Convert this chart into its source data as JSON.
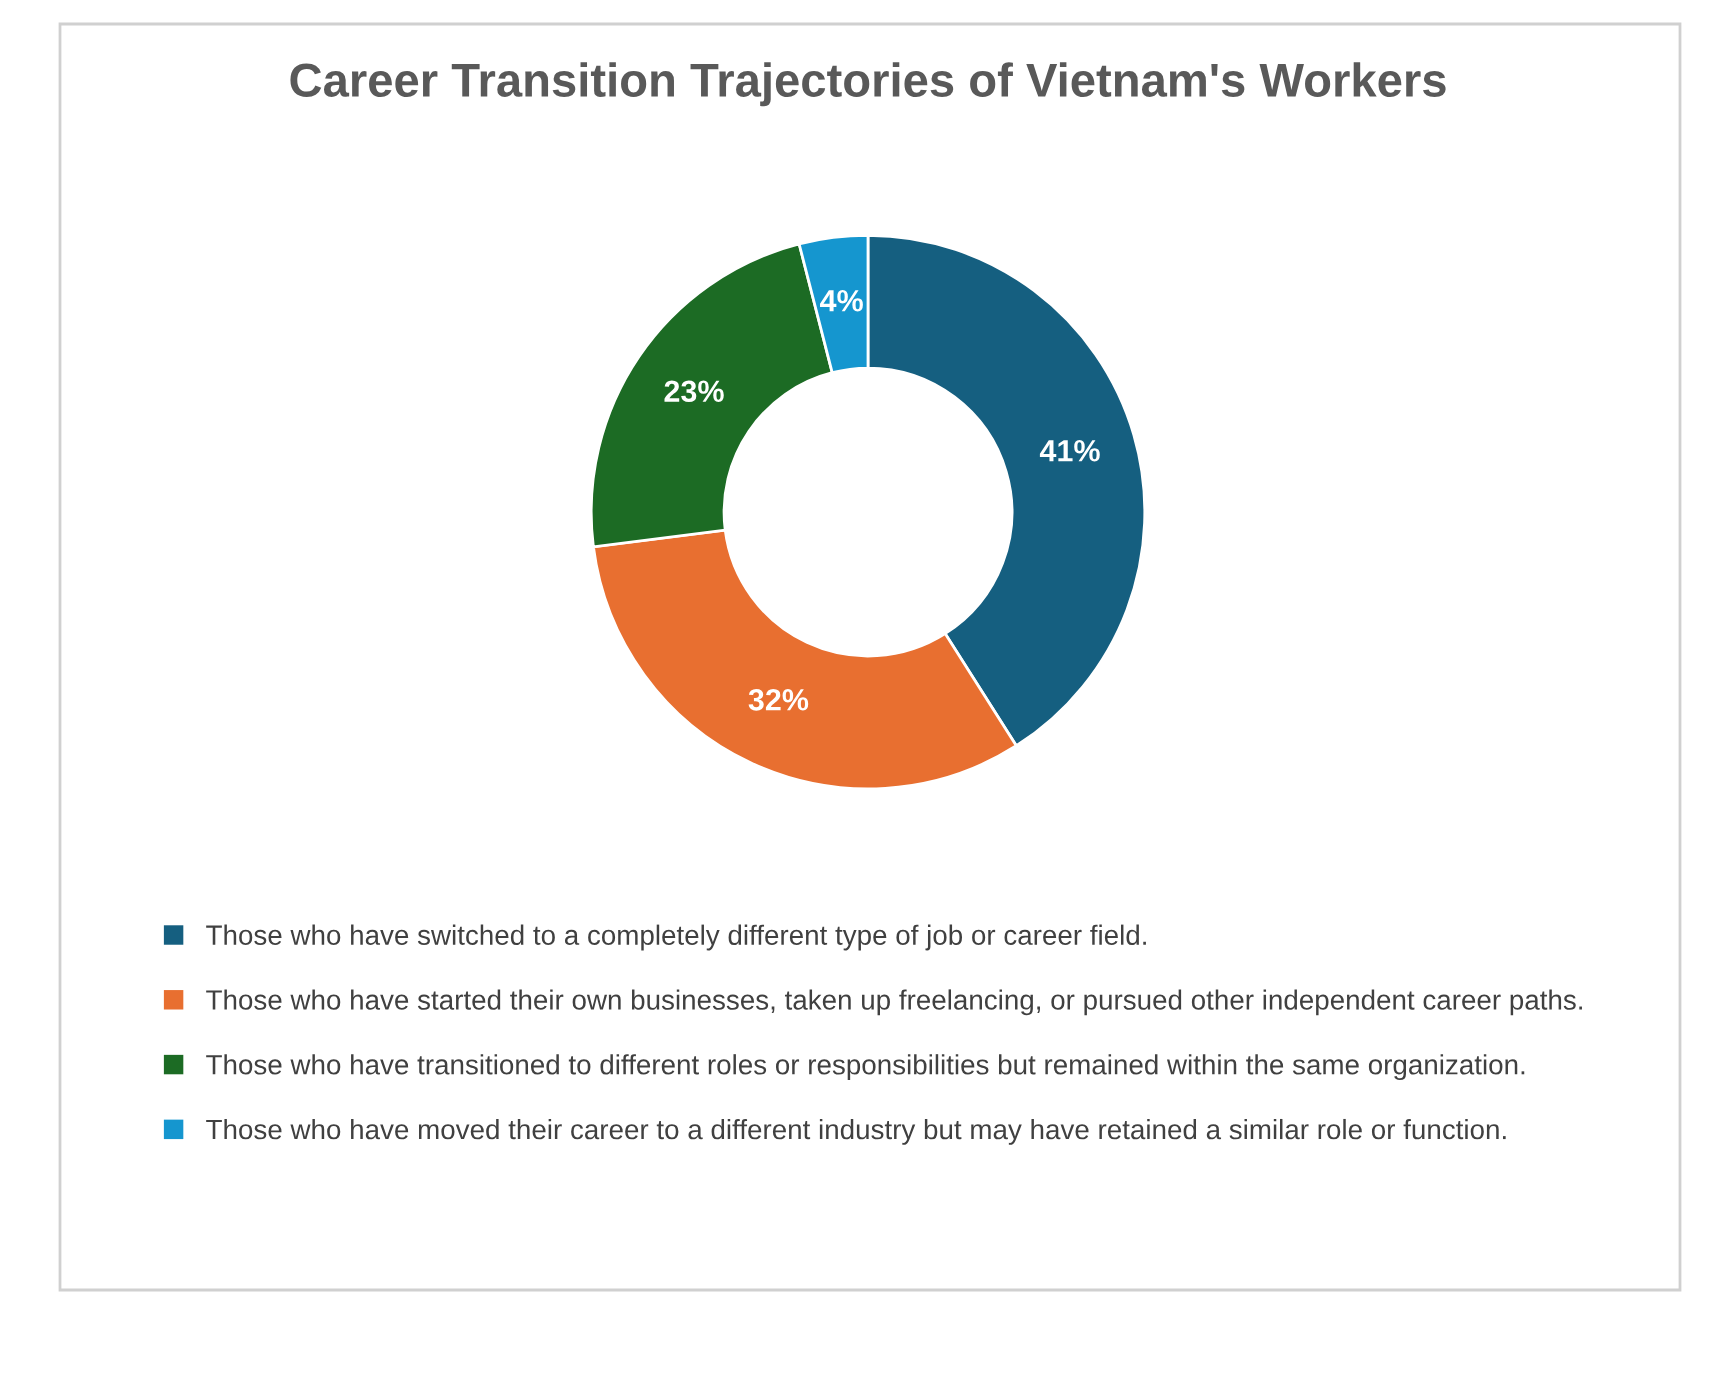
{
  "chart_data": {
    "type": "donut",
    "title": "Career Transition Trajectories of Vietnam's Workers",
    "categories": [
      "Those who have switched to a completely different type of job or career field.",
      "Those who have started their own businesses, taken up freelancing, or pursued other independent career paths.",
      "Those who have transitioned to different roles or responsibilities but remained within the same organization.",
      "Those who have moved their career to a different industry but may have retained a similar role or function."
    ],
    "values": [
      41,
      32,
      23,
      4
    ],
    "value_labels": [
      "41%",
      "32%",
      "23%",
      "4%"
    ],
    "colors": [
      "#155f80",
      "#e86f30",
      "#1c6b24",
      "#1596cf"
    ],
    "legend": "bottom"
  }
}
